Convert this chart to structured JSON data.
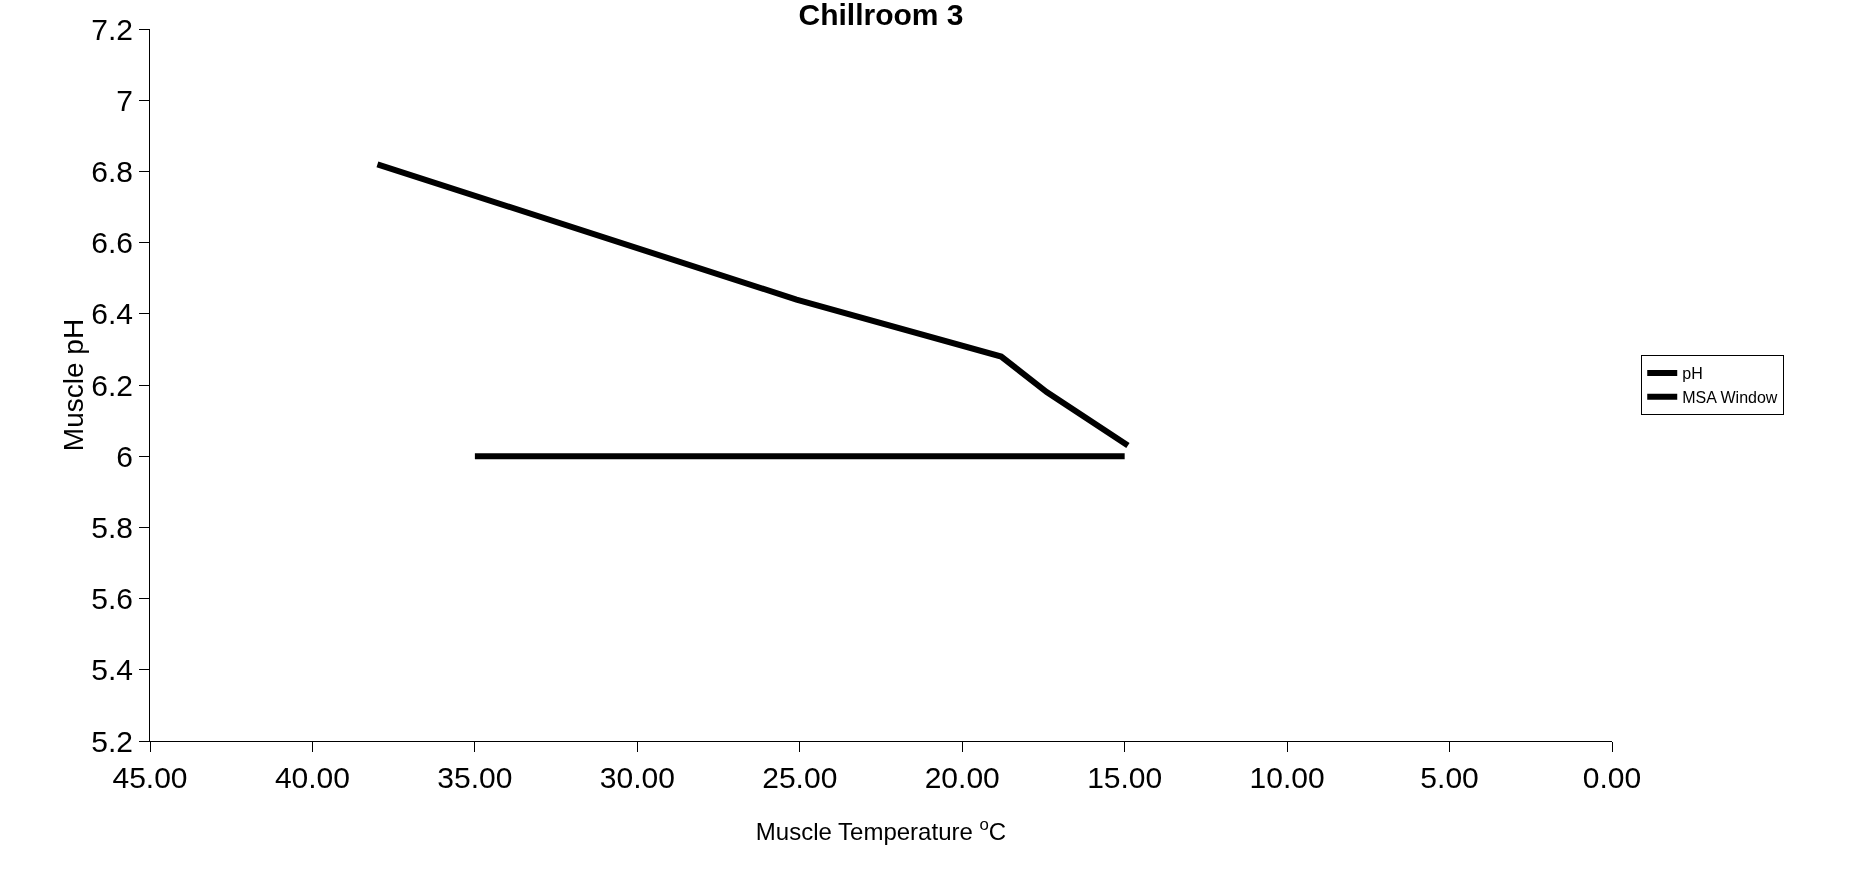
{
  "chart_data": {
    "type": "line",
    "title": "Chillroom 3",
    "xlabel": "Muscle Temperature $^{o}$C",
    "ylabel": "Muscle pH",
    "series": [
      {
        "name": "pH",
        "color": "#000000",
        "x": [
          38.0,
          25.1,
          18.8,
          17.4,
          14.9
        ],
        "values": [
          6.82,
          6.44,
          6.28,
          6.18,
          6.03
        ]
      },
      {
        "name": "MSA Window",
        "color": "#000000",
        "x": [
          35,
          15
        ],
        "values": [
          6,
          6
        ]
      }
    ],
    "xlim": [
      45,
      0
    ],
    "xticks": [
      {
        "value": 45,
        "label": "45.00"
      },
      {
        "value": 40,
        "label": "40.00"
      },
      {
        "value": 35,
        "label": "35.00"
      },
      {
        "value": 30,
        "label": "30.00"
      },
      {
        "value": 25,
        "label": "25.00"
      },
      {
        "value": 20,
        "label": "20.00"
      },
      {
        "value": 15,
        "label": "15.00"
      },
      {
        "value": 10,
        "label": "10.00"
      },
      {
        "value": 5,
        "label": "5.00"
      },
      {
        "value": 0,
        "label": "0.00"
      }
    ],
    "ylim": [
      5.2,
      7.2
    ],
    "yticks": [
      5.2,
      5.4,
      5.6,
      5.8,
      6,
      6.2,
      6.4,
      6.6,
      6.8,
      7,
      7.2
    ],
    "grid": false,
    "legend": "right",
    "marker": "none",
    "line_style": "solid"
  }
}
